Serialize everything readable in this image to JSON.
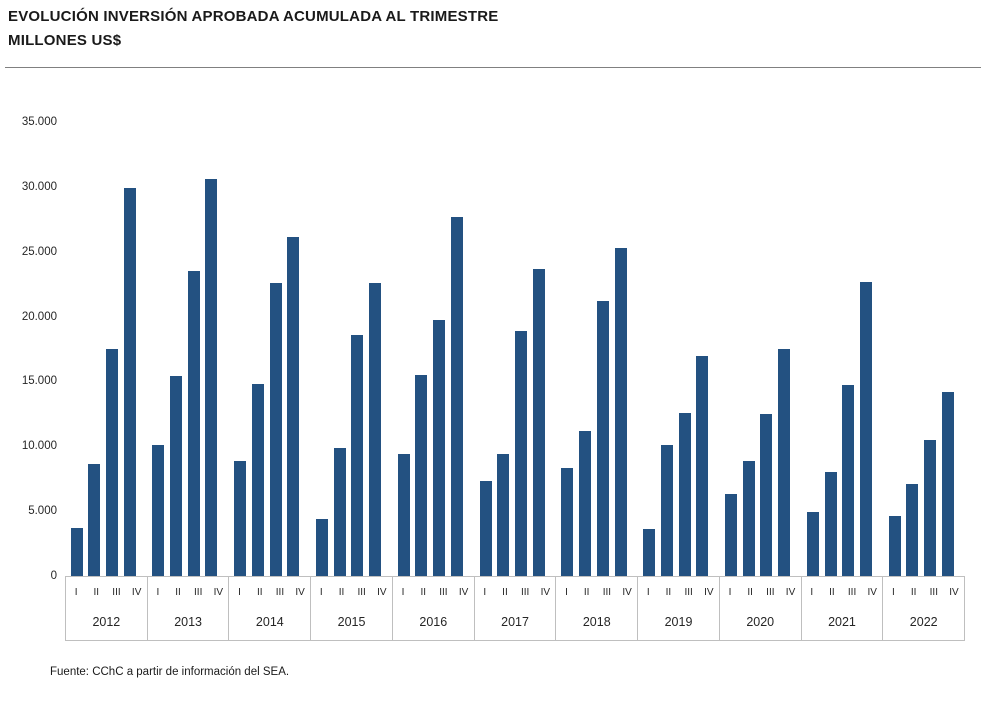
{
  "title": {
    "line1": "EVOLUCIÓN INVERSIÓN APROBADA ACUMULADA AL TRIMESTRE",
    "line2": "MILLONES US$"
  },
  "footer": {
    "source": "Fuente: CChC a partir de información del SEA."
  },
  "colors": {
    "bar": "#235181",
    "axis_text": "#262626",
    "band_border": "#bfbfbf",
    "title_rule": "#808080"
  },
  "chart_data": {
    "type": "bar",
    "title": "EVOLUCIÓN INVERSIÓN APROBADA ACUMULADA AL TRIMESTRE",
    "subtitle": "MILLONES US$",
    "xlabel": "",
    "ylabel": "",
    "ylim": [
      0,
      35000
    ],
    "ytick_step": 5000,
    "ytick_labels": [
      "0",
      "5.000",
      "10.000",
      "15.000",
      "20.000",
      "25.000",
      "30.000",
      "35.000"
    ],
    "grid": false,
    "legend_position": "none",
    "quarter_labels": [
      "I",
      "II",
      "III",
      "IV"
    ],
    "groups": [
      {
        "year": "2012",
        "values": [
          3700,
          8600,
          17500,
          29900
        ]
      },
      {
        "year": "2013",
        "values": [
          10100,
          15400,
          23500,
          30600
        ]
      },
      {
        "year": "2014",
        "values": [
          8900,
          14800,
          22600,
          26100
        ]
      },
      {
        "year": "2015",
        "values": [
          4400,
          9900,
          18600,
          22600
        ]
      },
      {
        "year": "2016",
        "values": [
          9400,
          15500,
          19700,
          27700
        ]
      },
      {
        "year": "2017",
        "values": [
          7300,
          9400,
          18900,
          23700
        ]
      },
      {
        "year": "2018",
        "values": [
          8300,
          11200,
          21200,
          25300
        ]
      },
      {
        "year": "2019",
        "values": [
          3600,
          10100,
          12600,
          17000
        ]
      },
      {
        "year": "2020",
        "values": [
          6300,
          8900,
          12500,
          17500
        ]
      },
      {
        "year": "2021",
        "values": [
          4900,
          8000,
          14700,
          22700
        ]
      },
      {
        "year": "2022",
        "values": [
          4600,
          7100,
          10500,
          14200
        ]
      }
    ]
  }
}
